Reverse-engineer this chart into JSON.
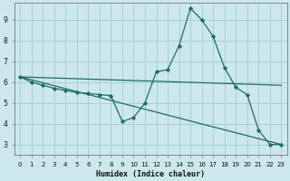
{
  "xlabel": "Humidex (Indice chaleur)",
  "background_color": "#cce8ec",
  "grid_color": "#aacdd4",
  "line_color": "#1e6b6b",
  "xlim": [
    -0.5,
    23.5
  ],
  "ylim": [
    2.5,
    9.8
  ],
  "xticks": [
    0,
    1,
    2,
    3,
    4,
    5,
    6,
    7,
    8,
    9,
    10,
    11,
    12,
    13,
    14,
    15,
    16,
    17,
    18,
    19,
    20,
    21,
    22,
    23
  ],
  "yticks": [
    3,
    4,
    5,
    6,
    7,
    8,
    9
  ],
  "line1_x": [
    0,
    1,
    2,
    3,
    4,
    5,
    6,
    7,
    8,
    9,
    10,
    11,
    12,
    13,
    14,
    15,
    16,
    17,
    18,
    19,
    20,
    21,
    22,
    23
  ],
  "line1_y": [
    6.25,
    6.0,
    5.85,
    5.7,
    5.6,
    5.5,
    5.45,
    5.4,
    5.35,
    4.1,
    4.3,
    5.0,
    6.5,
    6.6,
    7.75,
    9.55,
    9.0,
    8.2,
    6.7,
    5.75,
    5.4,
    3.7,
    3.0,
    3.0
  ],
  "line2_x": [
    0,
    23
  ],
  "line2_y": [
    6.25,
    5.85
  ],
  "line3_x": [
    0,
    23
  ],
  "line3_y": [
    6.25,
    3.0
  ]
}
